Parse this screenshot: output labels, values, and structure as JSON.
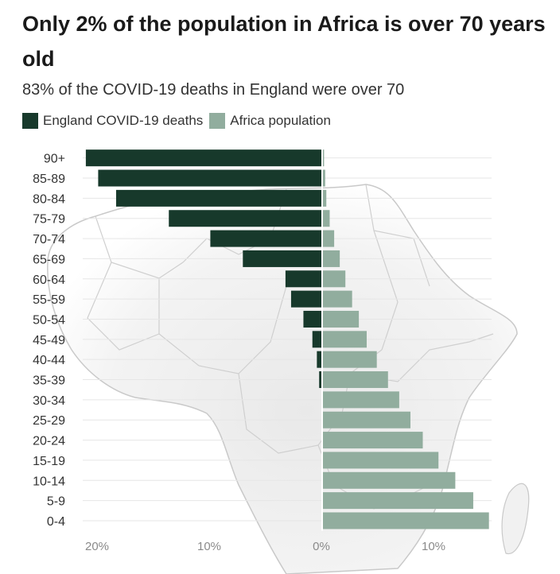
{
  "title": "Only 2% of the population in Africa is over 70 years old",
  "subtitle": "83% of the COVID-19 deaths in England were over 70",
  "colors": {
    "england": "#17392b",
    "africa": "#91ad9e",
    "grid": "#e6e6e6",
    "axis_text": "#8a8a8a",
    "label_text": "#333333"
  },
  "chart_data": {
    "type": "bar",
    "orientation": "horizontal-diverging",
    "categories": [
      "90+",
      "85-89",
      "80-84",
      "75-79",
      "70-74",
      "65-69",
      "60-64",
      "55-59",
      "50-54",
      "45-49",
      "40-44",
      "35-39",
      "30-34",
      "25-29",
      "20-24",
      "15-19",
      "10-14",
      "5-9",
      "0-4"
    ],
    "series": [
      {
        "name": "England COVID-19 deaths",
        "direction": "left",
        "values": [
          21.0,
          19.9,
          18.3,
          13.6,
          9.9,
          7.0,
          3.2,
          2.7,
          1.6,
          0.8,
          0.4,
          0.2,
          0.1,
          0,
          0,
          0,
          0,
          0,
          0
        ]
      },
      {
        "name": "Africa population",
        "direction": "right",
        "values": [
          0.1,
          0.2,
          0.3,
          0.6,
          1.0,
          1.5,
          2.0,
          2.6,
          3.2,
          3.9,
          4.8,
          5.8,
          6.8,
          7.8,
          8.9,
          10.3,
          11.8,
          13.4,
          14.8
        ]
      }
    ],
    "x_ticks": [
      {
        "value": -20,
        "label": "20%"
      },
      {
        "value": -10,
        "label": "10%"
      },
      {
        "value": 0,
        "label": "0%"
      },
      {
        "value": 10,
        "label": "10%"
      }
    ],
    "xlim": [
      -21.5,
      15.5
    ],
    "grid": "horizontal",
    "legend_position": "top-left"
  }
}
